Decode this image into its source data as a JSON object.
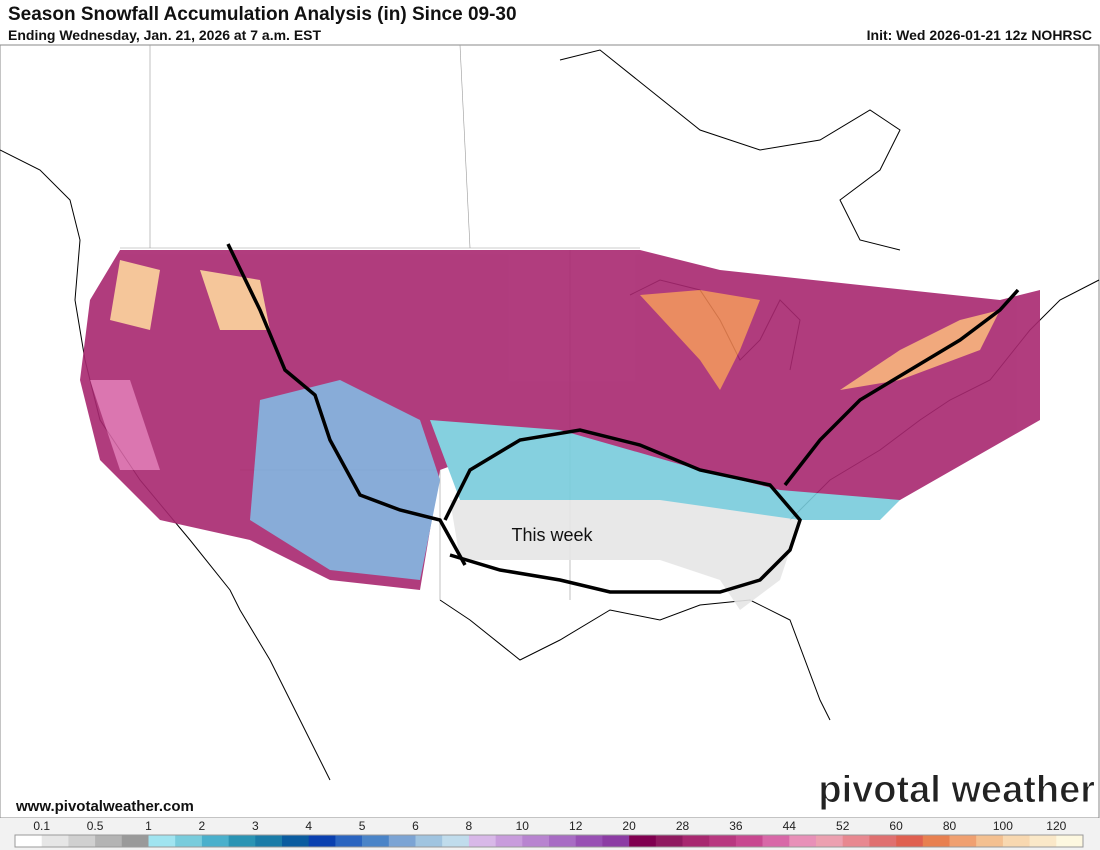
{
  "header": {
    "title": "Season Snowfall Accumulation Analysis (in) Since 09-30",
    "subtitle": "Ending Wednesday, Jan. 21, 2026 at 7 a.m. EST",
    "init": "Init: Wed 2026-01-21 12z NOHRSC"
  },
  "map": {
    "annotation": "This week"
  },
  "footer": {
    "website": "www.pivotalweather.com",
    "logo": "pivotal weather"
  },
  "legend": {
    "labels": [
      "0.1",
      "0.5",
      "1",
      "2",
      "3",
      "4",
      "5",
      "6",
      "8",
      "10",
      "12",
      "20",
      "28",
      "36",
      "44",
      "52",
      "60",
      "80",
      "100",
      "120"
    ],
    "colors": [
      "#ffffff",
      "#e6e6e6",
      "#d0d0d0",
      "#b4b4b4",
      "#9a9a9a",
      "#a0e4f0",
      "#78ccdc",
      "#4ab0cc",
      "#2a94b4",
      "#1a7ca8",
      "#0a5ca0",
      "#0a40b0",
      "#2a64c0",
      "#4a84c8",
      "#7ca4d4",
      "#a0c4e0",
      "#c0dcec",
      "#d8b8e8",
      "#c89cdc",
      "#b884d0",
      "#a86cc4",
      "#9850b4",
      "#8c3ca4",
      "#800050",
      "#901a60",
      "#a82870",
      "#b83880",
      "#c84890",
      "#d868a8",
      "#e890b8",
      "#eca0b0",
      "#e88890",
      "#e07070",
      "#e06050",
      "#e88050",
      "#f0a070",
      "#f4c090",
      "#f8d8b0",
      "#fae8c8",
      "#fdf8e0"
    ]
  }
}
